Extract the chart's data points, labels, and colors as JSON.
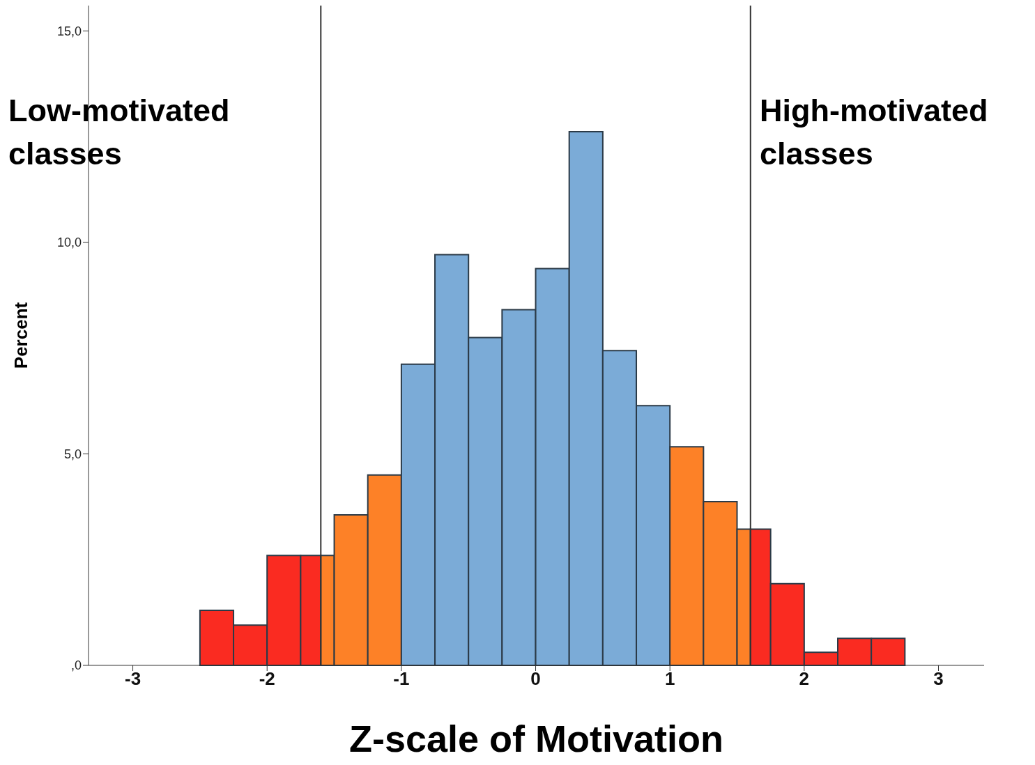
{
  "chart_data": {
    "type": "histogram",
    "xlabel": "Z-scale of Motivation",
    "ylabel": "Percent",
    "bins": [
      -2.5,
      -2.25,
      -2,
      -1.75,
      -1.6,
      -1.5,
      -1.25,
      -1,
      -0.75,
      -0.5,
      -0.25,
      0,
      0.25,
      0.5,
      0.75,
      1,
      1.25,
      1.5,
      1.6,
      1.75,
      2,
      2.25,
      2.5,
      2.75
    ],
    "values": [
      1.3,
      0.95,
      2.6,
      2.6,
      2.6,
      3.56,
      4.5,
      7.12,
      9.71,
      7.75,
      8.41,
      9.38,
      12.62,
      7.44,
      6.14,
      5.17,
      3.87,
      3.22,
      3.22,
      1.93,
      0.31,
      0.64,
      0.64
    ],
    "colors": [
      "#fa2b21",
      "#fa2b21",
      "#fa2b21",
      "#fa2b21",
      "#fd8127",
      "#fd8127",
      "#fd8127",
      "#7babd7",
      "#7babd7",
      "#7babd7",
      "#7babd7",
      "#7babd7",
      "#7babd7",
      "#7babd7",
      "#7babd7",
      "#fd8127",
      "#fd8127",
      "#fd8127",
      "#fa2b21",
      "#fa2b21",
      "#fa2b21",
      "#fa2b21",
      "#fa2b21"
    ],
    "xlim": [
      -3.33,
      3.34
    ],
    "xticks": [
      -3,
      -2,
      -1,
      0,
      1,
      2,
      3
    ],
    "ylim": [
      0,
      15.6
    ],
    "yticks": [
      {
        "value": 0,
        "label": ",0"
      },
      {
        "value": 5,
        "label": "5,0"
      },
      {
        "value": 10,
        "label": "10,0"
      },
      {
        "value": 15,
        "label": "15,0"
      }
    ],
    "ref_lines": [
      {
        "axis": "x",
        "value": -1.6,
        "color": "#333333"
      },
      {
        "axis": "x",
        "value": 1.6,
        "color": "#333333"
      }
    ],
    "annotations": [
      "Low-motivated classes",
      "High-motivated classes"
    ],
    "grid": false
  }
}
